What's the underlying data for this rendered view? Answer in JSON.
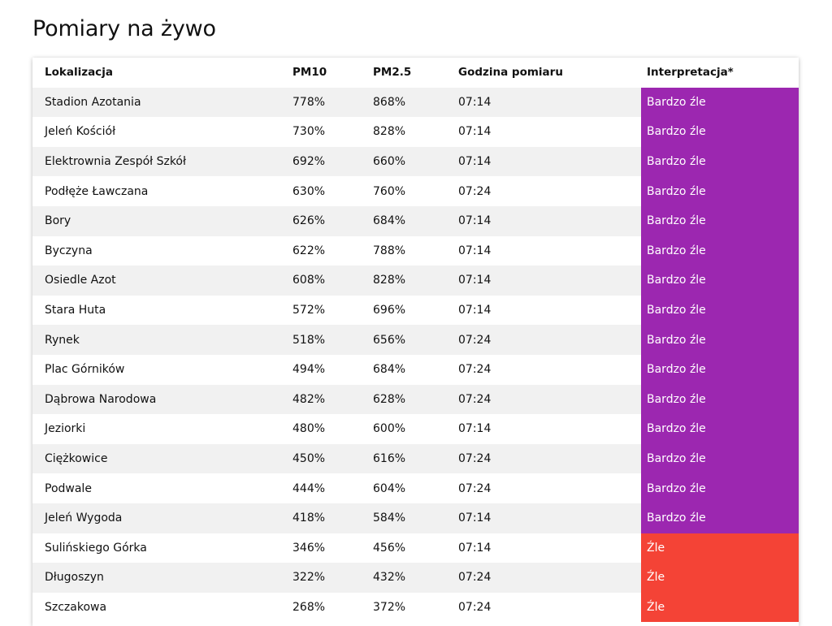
{
  "page": {
    "title": "Pomiary na żywo"
  },
  "table": {
    "headers": {
      "location": "Lokalizacja",
      "pm10": "PM10",
      "pm25": "PM2.5",
      "time": "Godzina pomiaru",
      "interpretation": "Interpretacja*"
    },
    "level_colors": {
      "Bardzo źle": "#9c27b0",
      "Źle": "#f44336"
    },
    "rows": [
      {
        "location": "Stadion Azotania",
        "pm10": "778%",
        "pm25": "868%",
        "time": "07:14",
        "interpretation": "Bardzo źle"
      },
      {
        "location": "Jeleń Kościół",
        "pm10": "730%",
        "pm25": "828%",
        "time": "07:14",
        "interpretation": "Bardzo źle"
      },
      {
        "location": "Elektrownia Zespół Szkół",
        "pm10": "692%",
        "pm25": "660%",
        "time": "07:14",
        "interpretation": "Bardzo źle"
      },
      {
        "location": "Podłęże Ławczana",
        "pm10": "630%",
        "pm25": "760%",
        "time": "07:24",
        "interpretation": "Bardzo źle"
      },
      {
        "location": "Bory",
        "pm10": "626%",
        "pm25": "684%",
        "time": "07:14",
        "interpretation": "Bardzo źle"
      },
      {
        "location": "Byczyna",
        "pm10": "622%",
        "pm25": "788%",
        "time": "07:14",
        "interpretation": "Bardzo źle"
      },
      {
        "location": "Osiedle Azot",
        "pm10": "608%",
        "pm25": "828%",
        "time": "07:14",
        "interpretation": "Bardzo źle"
      },
      {
        "location": "Stara Huta",
        "pm10": "572%",
        "pm25": "696%",
        "time": "07:14",
        "interpretation": "Bardzo źle"
      },
      {
        "location": "Rynek",
        "pm10": "518%",
        "pm25": "656%",
        "time": "07:24",
        "interpretation": "Bardzo źle"
      },
      {
        "location": "Plac Górników",
        "pm10": "494%",
        "pm25": "684%",
        "time": "07:24",
        "interpretation": "Bardzo źle"
      },
      {
        "location": "Dąbrowa Narodowa",
        "pm10": "482%",
        "pm25": "628%",
        "time": "07:24",
        "interpretation": "Bardzo źle"
      },
      {
        "location": "Jeziorki",
        "pm10": "480%",
        "pm25": "600%",
        "time": "07:14",
        "interpretation": "Bardzo źle"
      },
      {
        "location": "Ciężkowice",
        "pm10": "450%",
        "pm25": "616%",
        "time": "07:24",
        "interpretation": "Bardzo źle"
      },
      {
        "location": "Podwale",
        "pm10": "444%",
        "pm25": "604%",
        "time": "07:24",
        "interpretation": "Bardzo źle"
      },
      {
        "location": "Jeleń Wygoda",
        "pm10": "418%",
        "pm25": "584%",
        "time": "07:14",
        "interpretation": "Bardzo źle"
      },
      {
        "location": "Sulińskiego Górka",
        "pm10": "346%",
        "pm25": "456%",
        "time": "07:14",
        "interpretation": "Źle"
      },
      {
        "location": "Długoszyn",
        "pm10": "322%",
        "pm25": "432%",
        "time": "07:24",
        "interpretation": "Źle"
      },
      {
        "location": "Szczakowa",
        "pm10": "268%",
        "pm25": "372%",
        "time": "07:24",
        "interpretation": "Źle"
      }
    ]
  }
}
